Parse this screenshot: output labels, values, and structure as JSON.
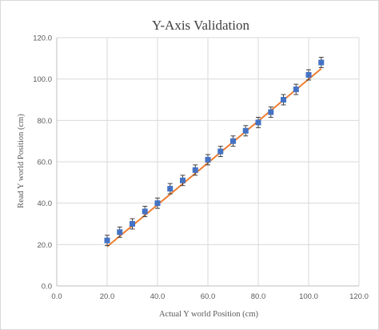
{
  "chart_data": {
    "type": "scatter",
    "title": "Y-Axis Validation",
    "xlabel": "Actual Y world Position (cm)",
    "ylabel": "Read Y world Position (cm)",
    "xlim": [
      0,
      120
    ],
    "ylim": [
      0,
      120
    ],
    "x_ticks": [
      "0.0",
      "20.0",
      "40.0",
      "60.0",
      "80.0",
      "100.0",
      "120.0"
    ],
    "y_ticks": [
      "0.0",
      "20.0",
      "40.0",
      "60.0",
      "80.0",
      "100.0",
      "120.0"
    ],
    "grid": "vertical and horizontal",
    "legend": "none",
    "series": [
      {
        "color": "#4472c4",
        "marker": "square",
        "error_bars": true,
        "error": 2.5,
        "x": [
          20,
          25,
          30,
          35,
          40,
          45,
          50,
          55,
          60,
          65,
          70,
          75,
          80,
          85,
          90,
          95,
          100,
          105
        ],
        "y": [
          22,
          26,
          30,
          36,
          40,
          47,
          51,
          56,
          61,
          65,
          70,
          75,
          79,
          84,
          90,
          95,
          102,
          108
        ]
      }
    ],
    "trendline": {
      "color": "#ed7d31",
      "type": "linear",
      "x_range": [
        20,
        105
      ],
      "y_range": [
        19,
        105
      ]
    }
  }
}
